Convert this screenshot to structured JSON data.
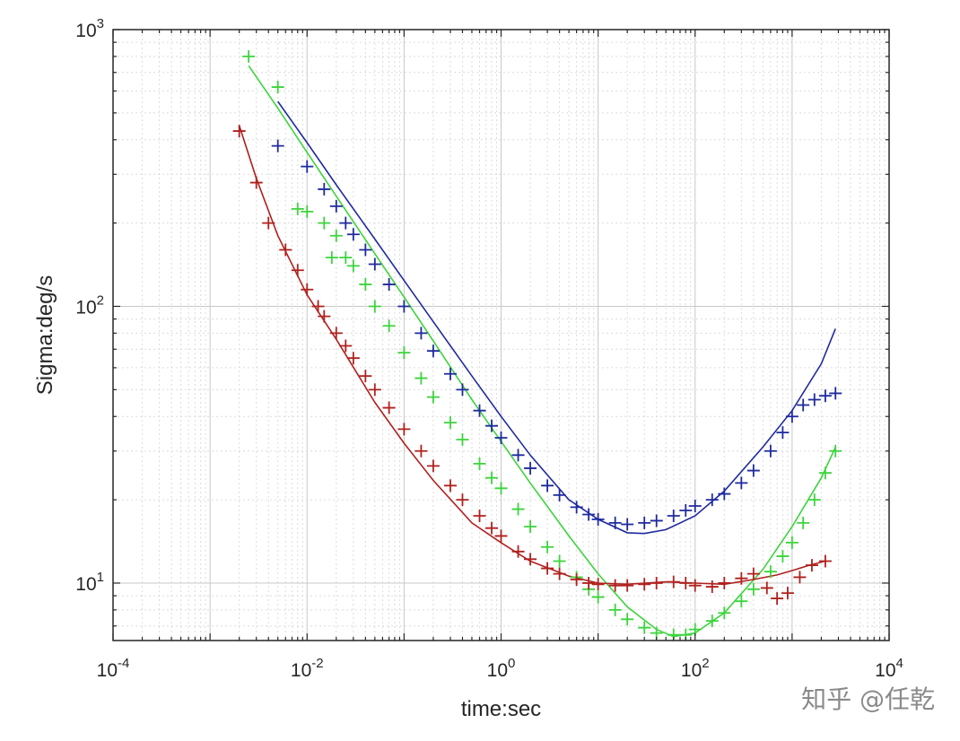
{
  "chart_data": {
    "type": "line",
    "title": "",
    "xlabel": "time:sec",
    "ylabel": "Sigma:deg/s",
    "xscale": "log",
    "yscale": "log",
    "xlim": [
      0.0001,
      10000
    ],
    "ylim": [
      6.2,
      1000
    ],
    "grid": true,
    "minor_grid": true,
    "legend": "none",
    "x_ticks": [
      {
        "base": "10",
        "exp": "-4",
        "value": 0.0001
      },
      {
        "base": "10",
        "exp": "-2",
        "value": 0.01
      },
      {
        "base": "10",
        "exp": "0",
        "value": 1
      },
      {
        "base": "10",
        "exp": "2",
        "value": 100
      },
      {
        "base": "10",
        "exp": "4",
        "value": 10000
      }
    ],
    "y_ticks": [
      {
        "base": "10",
        "exp": "1",
        "value": 10
      },
      {
        "base": "10",
        "exp": "2",
        "value": 100
      },
      {
        "base": "10",
        "exp": "3",
        "value": 1000
      }
    ],
    "series": [
      {
        "color": "#1f2a9e",
        "marker": "+",
        "points": [
          [
            0.005,
            380
          ],
          [
            0.01,
            320
          ],
          [
            0.015,
            265
          ],
          [
            0.02,
            230
          ],
          [
            0.025,
            200
          ],
          [
            0.03,
            182
          ],
          [
            0.04,
            160
          ],
          [
            0.05,
            142
          ],
          [
            0.07,
            120
          ],
          [
            0.1,
            100
          ],
          [
            0.15,
            80
          ],
          [
            0.2,
            69
          ],
          [
            0.3,
            57
          ],
          [
            0.4,
            50
          ],
          [
            0.6,
            42
          ],
          [
            0.8,
            37
          ],
          [
            1.0,
            33.5
          ],
          [
            1.5,
            29
          ],
          [
            2.0,
            26
          ],
          [
            3.0,
            22.5
          ],
          [
            4.0,
            20.8
          ],
          [
            6.0,
            18.8
          ],
          [
            8.0,
            17.7
          ],
          [
            10,
            17.0
          ],
          [
            15,
            16.5
          ],
          [
            20,
            16.3
          ],
          [
            30,
            16.5
          ],
          [
            40,
            16.8
          ],
          [
            60,
            17.5
          ],
          [
            80,
            18.3
          ],
          [
            100,
            19
          ],
          [
            150,
            20
          ],
          [
            200,
            21
          ],
          [
            300,
            23
          ],
          [
            400,
            25.5
          ],
          [
            600,
            30
          ],
          [
            800,
            35
          ],
          [
            1000,
            40
          ],
          [
            1300,
            44
          ],
          [
            1700,
            46
          ],
          [
            2200,
            47.5
          ],
          [
            2800,
            48.5
          ]
        ]
      },
      {
        "color": "#3cd43c",
        "marker": "+",
        "points": [
          [
            0.0025,
            800
          ],
          [
            0.005,
            620
          ],
          [
            0.008,
            225
          ],
          [
            0.01,
            220
          ],
          [
            0.015,
            200
          ],
          [
            0.018,
            150
          ],
          [
            0.02,
            180
          ],
          [
            0.025,
            150
          ],
          [
            0.03,
            140
          ],
          [
            0.04,
            120
          ],
          [
            0.05,
            100
          ],
          [
            0.07,
            85
          ],
          [
            0.1,
            68
          ],
          [
            0.15,
            55
          ],
          [
            0.2,
            47
          ],
          [
            0.3,
            38
          ],
          [
            0.4,
            33
          ],
          [
            0.6,
            27
          ],
          [
            0.8,
            24
          ],
          [
            1.0,
            22
          ],
          [
            1.5,
            18.5
          ],
          [
            2.0,
            16
          ],
          [
            3.0,
            13.5
          ],
          [
            4.0,
            12
          ],
          [
            6.0,
            10.5
          ],
          [
            8.0,
            9.5
          ],
          [
            10,
            8.9
          ],
          [
            15,
            8.0
          ],
          [
            20,
            7.4
          ],
          [
            30,
            6.9
          ],
          [
            40,
            6.6
          ],
          [
            60,
            6.5
          ],
          [
            80,
            6.5
          ],
          [
            100,
            6.8
          ],
          [
            150,
            7.3
          ],
          [
            200,
            7.8
          ],
          [
            300,
            8.6
          ],
          [
            400,
            9.5
          ],
          [
            600,
            11
          ],
          [
            800,
            12.5
          ],
          [
            1000,
            14
          ],
          [
            1300,
            16.5
          ],
          [
            1700,
            20
          ],
          [
            2200,
            25
          ],
          [
            2800,
            30
          ]
        ]
      },
      {
        "color": "#b0211e",
        "marker": "+",
        "points": [
          [
            0.002,
            430
          ],
          [
            0.003,
            280
          ],
          [
            0.004,
            200
          ],
          [
            0.006,
            160
          ],
          [
            0.008,
            135
          ],
          [
            0.01,
            115
          ],
          [
            0.013,
            100
          ],
          [
            0.015,
            92
          ],
          [
            0.02,
            80
          ],
          [
            0.025,
            72
          ],
          [
            0.03,
            65
          ],
          [
            0.04,
            56
          ],
          [
            0.05,
            50
          ],
          [
            0.07,
            43
          ],
          [
            0.1,
            36
          ],
          [
            0.15,
            30
          ],
          [
            0.2,
            26.5
          ],
          [
            0.3,
            22.5
          ],
          [
            0.4,
            20
          ],
          [
            0.6,
            17.5
          ],
          [
            0.8,
            15.8
          ],
          [
            1.0,
            14.8
          ],
          [
            1.5,
            13
          ],
          [
            2.0,
            12.2
          ],
          [
            3.0,
            11.3
          ],
          [
            4.0,
            10.8
          ],
          [
            6.0,
            10.3
          ],
          [
            8.0,
            10.0
          ],
          [
            10,
            9.9
          ],
          [
            15,
            9.8
          ],
          [
            20,
            9.8
          ],
          [
            30,
            9.9
          ],
          [
            40,
            10.0
          ],
          [
            60,
            10.1
          ],
          [
            80,
            10.0
          ],
          [
            100,
            9.8
          ],
          [
            150,
            9.7
          ],
          [
            200,
            10.0
          ],
          [
            300,
            10.4
          ],
          [
            400,
            10.8
          ],
          [
            550,
            9.6
          ],
          [
            700,
            8.8
          ],
          [
            900,
            9.2
          ],
          [
            1200,
            10.5
          ],
          [
            1600,
            11.6
          ],
          [
            2200,
            12.0
          ]
        ]
      }
    ],
    "fit_lines": [
      {
        "color": "#1f2a9e",
        "points": [
          [
            0.005,
            550
          ],
          [
            0.01,
            390
          ],
          [
            0.02,
            275
          ],
          [
            0.05,
            175
          ],
          [
            0.1,
            124
          ],
          [
            0.2,
            88
          ],
          [
            0.5,
            56
          ],
          [
            1,
            40
          ],
          [
            2,
            29
          ],
          [
            5,
            20
          ],
          [
            10,
            17
          ],
          [
            20,
            15.2
          ],
          [
            30,
            15.1
          ],
          [
            50,
            15.6
          ],
          [
            100,
            17.5
          ],
          [
            200,
            21.5
          ],
          [
            500,
            31
          ],
          [
            1000,
            42
          ],
          [
            2000,
            62
          ],
          [
            2800,
            83
          ]
        ]
      },
      {
        "color": "#3cd43c",
        "points": [
          [
            0.0025,
            740
          ],
          [
            0.005,
            520
          ],
          [
            0.01,
            360
          ],
          [
            0.02,
            250
          ],
          [
            0.05,
            155
          ],
          [
            0.1,
            108
          ],
          [
            0.2,
            75
          ],
          [
            0.5,
            46
          ],
          [
            1,
            32.5
          ],
          [
            2,
            23
          ],
          [
            5,
            14.8
          ],
          [
            10,
            10.8
          ],
          [
            20,
            8.2
          ],
          [
            40,
            6.8
          ],
          [
            60,
            6.4
          ],
          [
            100,
            6.6
          ],
          [
            200,
            7.8
          ],
          [
            500,
            11.2
          ],
          [
            1000,
            16
          ],
          [
            2000,
            24
          ],
          [
            2800,
            31
          ]
        ]
      },
      {
        "color": "#b0211e",
        "points": [
          [
            0.002,
            450
          ],
          [
            0.003,
            290
          ],
          [
            0.005,
            180
          ],
          [
            0.01,
            110
          ],
          [
            0.02,
            76
          ],
          [
            0.05,
            45
          ],
          [
            0.1,
            32
          ],
          [
            0.2,
            23.5
          ],
          [
            0.5,
            16.5
          ],
          [
            1,
            14
          ],
          [
            2,
            12
          ],
          [
            5,
            10.6
          ],
          [
            10,
            10
          ],
          [
            20,
            9.9
          ],
          [
            50,
            10.1
          ],
          [
            100,
            10
          ],
          [
            200,
            9.9
          ],
          [
            400,
            10.3
          ],
          [
            700,
            10.7
          ],
          [
            1000,
            11.1
          ],
          [
            1500,
            11.6
          ],
          [
            2200,
            12
          ]
        ]
      }
    ]
  },
  "watermark": {
    "text": "知乎 @任乾"
  }
}
